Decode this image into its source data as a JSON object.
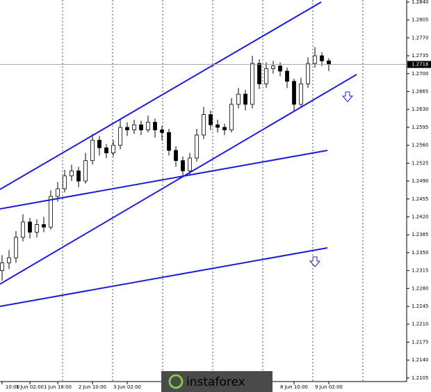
{
  "chart_data": {
    "type": "candlestick",
    "categories": [
      "10:00",
      null,
      null,
      null,
      "1 Jun 02:00",
      null,
      null,
      null,
      "1 Jun 18:00",
      null,
      null,
      null,
      null,
      "2 Jun 10:00",
      null,
      null,
      null,
      null,
      "3 Jun 02:00",
      null,
      null,
      null,
      null,
      null,
      null,
      null,
      null,
      null,
      null,
      null,
      null,
      null,
      null,
      null,
      null,
      null,
      null,
      null,
      null,
      null,
      null,
      null,
      "8 Jun 10:00",
      null,
      null,
      null,
      null,
      "9 Jun 02:00"
    ],
    "open": [
      1.2315,
      1.233,
      1.234,
      1.238,
      1.241,
      1.239,
      1.2405,
      1.24,
      1.246,
      1.2475,
      1.25,
      1.251,
      1.249,
      1.253,
      1.257,
      1.2555,
      1.2545,
      1.256,
      1.2595,
      1.259,
      1.26,
      1.259,
      1.2605,
      1.259,
      1.2585,
      1.255,
      1.253,
      1.251,
      1.2535,
      1.258,
      1.262,
      1.26,
      1.2595,
      1.259,
      1.264,
      1.266,
      1.264,
      1.272,
      1.268,
      1.271,
      1.2715,
      1.2705,
      1.2685,
      1.264,
      1.268,
      1.272,
      1.2735,
      1.2725
    ],
    "high": [
      1.2345,
      1.2355,
      1.2392,
      1.2425,
      1.2418,
      1.2415,
      1.242,
      1.2472,
      1.2488,
      1.2512,
      1.2522,
      1.2518,
      1.2545,
      1.2582,
      1.2578,
      1.2562,
      1.257,
      1.2612,
      1.2605,
      1.261,
      1.2608,
      1.2618,
      1.2612,
      1.2598,
      1.2592,
      1.2558,
      1.2538,
      1.2545,
      1.2592,
      1.2635,
      1.2628,
      1.261,
      1.2602,
      1.2652,
      1.2672,
      1.2668,
      1.2735,
      1.2728,
      1.2722,
      1.2725,
      1.2722,
      1.2712,
      1.269,
      1.2692,
      1.2732,
      1.2752,
      1.2742,
      1.273
    ],
    "low": [
      1.2295,
      1.2318,
      1.233,
      1.2372,
      1.2378,
      1.238,
      1.239,
      1.2395,
      1.245,
      1.2468,
      1.249,
      1.2478,
      1.2485,
      1.2522,
      1.254,
      1.2535,
      1.2538,
      1.2552,
      1.2578,
      1.2582,
      1.258,
      1.2585,
      1.2575,
      1.257,
      1.254,
      1.2518,
      1.25,
      1.2502,
      1.2528,
      1.2572,
      1.259,
      1.2585,
      1.258,
      1.2585,
      1.2632,
      1.2628,
      1.2632,
      1.267,
      1.2672,
      1.27,
      1.2695,
      1.2672,
      1.2628,
      1.2635,
      1.2672,
      1.2712,
      1.2715,
      1.2705
    ],
    "close": [
      1.233,
      1.234,
      1.238,
      1.241,
      1.239,
      1.2405,
      1.24,
      1.246,
      1.2475,
      1.25,
      1.251,
      1.249,
      1.253,
      1.257,
      1.2555,
      1.2545,
      1.256,
      1.2595,
      1.259,
      1.26,
      1.259,
      1.2605,
      1.259,
      1.2585,
      1.255,
      1.253,
      1.251,
      1.2535,
      1.258,
      1.262,
      1.26,
      1.2595,
      1.259,
      1.264,
      1.266,
      1.264,
      1.272,
      1.268,
      1.271,
      1.2715,
      1.2705,
      1.2685,
      1.264,
      1.268,
      1.272,
      1.2735,
      1.2725,
      1.2718
    ],
    "current_price": 1.2718,
    "ylim": [
      1.2098,
      1.2844
    ],
    "yticks": [
      {
        "value": 1.284,
        "label": "1.2840"
      },
      {
        "value": 1.2805,
        "label": "1.2805"
      },
      {
        "value": 1.277,
        "label": "1.2770"
      },
      {
        "value": 1.2735,
        "label": "1.2735"
      },
      {
        "value": 1.27,
        "label": "1.2700"
      },
      {
        "value": 1.2665,
        "label": "1.2665"
      },
      {
        "value": 1.263,
        "label": "1.2630"
      },
      {
        "value": 1.2595,
        "label": "1.2595"
      },
      {
        "value": 1.256,
        "label": "1.2560"
      },
      {
        "value": 1.2525,
        "label": "1.2525"
      },
      {
        "value": 1.249,
        "label": "1.2490"
      },
      {
        "value": 1.2455,
        "label": "1.2455"
      },
      {
        "value": 1.242,
        "label": "1.2420"
      },
      {
        "value": 1.2385,
        "label": "1.2385"
      },
      {
        "value": 1.235,
        "label": "1.2350"
      },
      {
        "value": 1.2315,
        "label": "1.2315"
      },
      {
        "value": 1.228,
        "label": "1.2280"
      },
      {
        "value": 1.2245,
        "label": "1.2245"
      },
      {
        "value": 1.221,
        "label": "1.2210"
      },
      {
        "value": 1.2175,
        "label": "1.2175"
      },
      {
        "value": 1.214,
        "label": "1.2140"
      },
      {
        "value": 1.2105,
        "label": "1.2105"
      }
    ],
    "watermark": "instaforex"
  }
}
